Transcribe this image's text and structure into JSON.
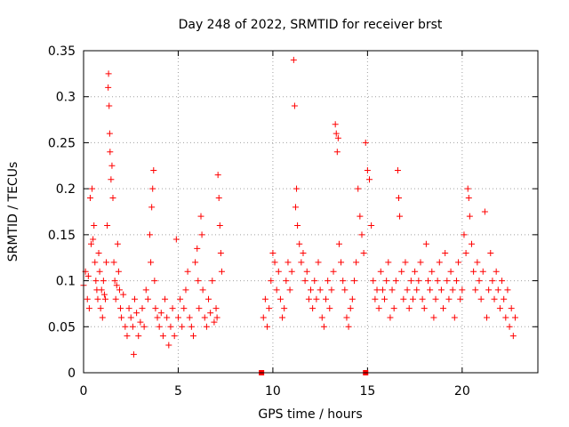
{
  "chart_data": {
    "type": "scatter",
    "title": "Day 248 of 2022, SRMTID for receiver brst",
    "xlabel": "GPS time / hours",
    "ylabel": "SRMTID / TECUs",
    "xlim": [
      0,
      24
    ],
    "ylim": [
      0,
      0.35
    ],
    "xticks": [
      0,
      5,
      10,
      15,
      20
    ],
    "xtick_labels": [
      "0",
      "5",
      "10",
      "15",
      "20"
    ],
    "yticks": [
      0,
      0.05,
      0.1,
      0.15,
      0.2,
      0.25,
      0.3,
      0.35
    ],
    "ytick_labels": [
      "0",
      "0.05",
      "0.1",
      "0.15",
      "0.2",
      "0.25",
      "0.3",
      "0.35"
    ],
    "grid": true,
    "legend": "none",
    "marker": "plus",
    "color": "#ff0000",
    "zero_markers": {
      "marker": "square",
      "x": [
        9.4,
        14.9
      ],
      "y": [
        0,
        0
      ]
    },
    "segments": [
      {
        "x_range": [
          0.0,
          7.3
        ],
        "points": [
          [
            0.0,
            0.095
          ],
          [
            0.1,
            0.11
          ],
          [
            0.2,
            0.08
          ],
          [
            0.25,
            0.105
          ],
          [
            0.3,
            0.07
          ],
          [
            0.35,
            0.19
          ],
          [
            0.4,
            0.14
          ],
          [
            0.45,
            0.2
          ],
          [
            0.5,
            0.145
          ],
          [
            0.55,
            0.16
          ],
          [
            0.6,
            0.12
          ],
          [
            0.65,
            0.1
          ],
          [
            0.7,
            0.09
          ],
          [
            0.75,
            0.08
          ],
          [
            0.8,
            0.13
          ],
          [
            0.85,
            0.11
          ],
          [
            0.9,
            0.07
          ],
          [
            0.95,
            0.09
          ],
          [
            1.0,
            0.06
          ],
          [
            1.05,
            0.1
          ],
          [
            1.1,
            0.085
          ],
          [
            1.15,
            0.08
          ],
          [
            1.2,
            0.12
          ],
          [
            1.25,
            0.16
          ],
          [
            1.3,
            0.31
          ],
          [
            1.32,
            0.325
          ],
          [
            1.35,
            0.29
          ],
          [
            1.38,
            0.26
          ],
          [
            1.4,
            0.24
          ],
          [
            1.45,
            0.21
          ],
          [
            1.5,
            0.225
          ],
          [
            1.55,
            0.19
          ],
          [
            1.6,
            0.12
          ],
          [
            1.65,
            0.1
          ],
          [
            1.7,
            0.08
          ],
          [
            1.75,
            0.095
          ],
          [
            1.8,
            0.14
          ],
          [
            1.85,
            0.11
          ],
          [
            1.9,
            0.09
          ],
          [
            1.95,
            0.07
          ],
          [
            2.0,
            0.06
          ],
          [
            2.1,
            0.085
          ],
          [
            2.2,
            0.05
          ],
          [
            2.3,
            0.04
          ],
          [
            2.4,
            0.07
          ],
          [
            2.5,
            0.06
          ],
          [
            2.6,
            0.05
          ],
          [
            2.65,
            0.02
          ],
          [
            2.7,
            0.08
          ],
          [
            2.8,
            0.065
          ],
          [
            2.9,
            0.04
          ],
          [
            3.0,
            0.055
          ],
          [
            3.1,
            0.07
          ],
          [
            3.2,
            0.05
          ],
          [
            3.3,
            0.09
          ],
          [
            3.4,
            0.08
          ],
          [
            3.5,
            0.15
          ],
          [
            3.55,
            0.12
          ],
          [
            3.6,
            0.18
          ],
          [
            3.65,
            0.2
          ],
          [
            3.7,
            0.22
          ],
          [
            3.75,
            0.1
          ],
          [
            3.8,
            0.07
          ],
          [
            3.9,
            0.06
          ],
          [
            4.0,
            0.05
          ],
          [
            4.1,
            0.065
          ],
          [
            4.2,
            0.04
          ],
          [
            4.3,
            0.08
          ],
          [
            4.4,
            0.06
          ],
          [
            4.5,
            0.03
          ],
          [
            4.6,
            0.05
          ],
          [
            4.7,
            0.07
          ],
          [
            4.8,
            0.04
          ],
          [
            4.9,
            0.145
          ],
          [
            5.0,
            0.06
          ],
          [
            5.1,
            0.08
          ],
          [
            5.2,
            0.05
          ],
          [
            5.3,
            0.07
          ],
          [
            5.4,
            0.09
          ],
          [
            5.5,
            0.11
          ],
          [
            5.6,
            0.06
          ],
          [
            5.7,
            0.05
          ],
          [
            5.8,
            0.04
          ],
          [
            5.9,
            0.12
          ],
          [
            6.0,
            0.135
          ],
          [
            6.05,
            0.1
          ],
          [
            6.1,
            0.07
          ],
          [
            6.2,
            0.17
          ],
          [
            6.25,
            0.15
          ],
          [
            6.3,
            0.09
          ],
          [
            6.4,
            0.06
          ],
          [
            6.5,
            0.05
          ],
          [
            6.6,
            0.08
          ],
          [
            6.7,
            0.065
          ],
          [
            6.8,
            0.1
          ],
          [
            6.9,
            0.055
          ],
          [
            7.0,
            0.07
          ],
          [
            7.05,
            0.06
          ],
          [
            7.1,
            0.215
          ],
          [
            7.15,
            0.19
          ],
          [
            7.2,
            0.16
          ],
          [
            7.25,
            0.13
          ],
          [
            7.3,
            0.11
          ]
        ]
      },
      {
        "x_range": [
          9.5,
          22.8
        ],
        "points": [
          [
            9.5,
            0.06
          ],
          [
            9.6,
            0.08
          ],
          [
            9.7,
            0.05
          ],
          [
            9.8,
            0.07
          ],
          [
            9.9,
            0.1
          ],
          [
            10.0,
            0.13
          ],
          [
            10.1,
            0.12
          ],
          [
            10.2,
            0.09
          ],
          [
            10.3,
            0.11
          ],
          [
            10.4,
            0.08
          ],
          [
            10.5,
            0.06
          ],
          [
            10.6,
            0.07
          ],
          [
            10.7,
            0.1
          ],
          [
            10.8,
            0.12
          ],
          [
            10.9,
            0.09
          ],
          [
            11.0,
            0.11
          ],
          [
            11.1,
            0.34
          ],
          [
            11.15,
            0.29
          ],
          [
            11.2,
            0.18
          ],
          [
            11.25,
            0.2
          ],
          [
            11.3,
            0.16
          ],
          [
            11.4,
            0.14
          ],
          [
            11.5,
            0.12
          ],
          [
            11.6,
            0.13
          ],
          [
            11.7,
            0.1
          ],
          [
            11.8,
            0.11
          ],
          [
            11.9,
            0.08
          ],
          [
            12.0,
            0.09
          ],
          [
            12.1,
            0.07
          ],
          [
            12.2,
            0.1
          ],
          [
            12.3,
            0.08
          ],
          [
            12.4,
            0.12
          ],
          [
            12.5,
            0.09
          ],
          [
            12.6,
            0.06
          ],
          [
            12.7,
            0.05
          ],
          [
            12.8,
            0.08
          ],
          [
            12.9,
            0.1
          ],
          [
            13.0,
            0.07
          ],
          [
            13.1,
            0.09
          ],
          [
            13.2,
            0.11
          ],
          [
            13.3,
            0.27
          ],
          [
            13.35,
            0.26
          ],
          [
            13.4,
            0.24
          ],
          [
            13.45,
            0.255
          ],
          [
            13.5,
            0.14
          ],
          [
            13.6,
            0.12
          ],
          [
            13.7,
            0.1
          ],
          [
            13.8,
            0.09
          ],
          [
            13.9,
            0.06
          ],
          [
            14.0,
            0.05
          ],
          [
            14.1,
            0.07
          ],
          [
            14.2,
            0.08
          ],
          [
            14.3,
            0.1
          ],
          [
            14.4,
            0.12
          ],
          [
            14.5,
            0.2
          ],
          [
            14.6,
            0.17
          ],
          [
            14.7,
            0.15
          ],
          [
            14.8,
            0.13
          ],
          [
            14.9,
            0.25
          ],
          [
            15.0,
            0.22
          ],
          [
            15.1,
            0.21
          ],
          [
            15.2,
            0.16
          ],
          [
            15.3,
            0.1
          ],
          [
            15.4,
            0.08
          ],
          [
            15.5,
            0.09
          ],
          [
            15.6,
            0.07
          ],
          [
            15.7,
            0.11
          ],
          [
            15.8,
            0.09
          ],
          [
            15.9,
            0.08
          ],
          [
            16.0,
            0.1
          ],
          [
            16.1,
            0.12
          ],
          [
            16.2,
            0.06
          ],
          [
            16.3,
            0.09
          ],
          [
            16.4,
            0.07
          ],
          [
            16.5,
            0.1
          ],
          [
            16.6,
            0.22
          ],
          [
            16.65,
            0.19
          ],
          [
            16.7,
            0.17
          ],
          [
            16.8,
            0.11
          ],
          [
            16.9,
            0.08
          ],
          [
            17.0,
            0.12
          ],
          [
            17.1,
            0.09
          ],
          [
            17.2,
            0.07
          ],
          [
            17.3,
            0.1
          ],
          [
            17.4,
            0.08
          ],
          [
            17.5,
            0.11
          ],
          [
            17.6,
            0.09
          ],
          [
            17.7,
            0.1
          ],
          [
            17.8,
            0.12
          ],
          [
            17.9,
            0.08
          ],
          [
            18.0,
            0.07
          ],
          [
            18.1,
            0.14
          ],
          [
            18.2,
            0.1
          ],
          [
            18.3,
            0.09
          ],
          [
            18.4,
            0.11
          ],
          [
            18.5,
            0.06
          ],
          [
            18.6,
            0.08
          ],
          [
            18.7,
            0.1
          ],
          [
            18.8,
            0.12
          ],
          [
            18.9,
            0.09
          ],
          [
            19.0,
            0.07
          ],
          [
            19.1,
            0.13
          ],
          [
            19.2,
            0.1
          ],
          [
            19.3,
            0.08
          ],
          [
            19.4,
            0.11
          ],
          [
            19.5,
            0.09
          ],
          [
            19.6,
            0.06
          ],
          [
            19.7,
            0.1
          ],
          [
            19.8,
            0.12
          ],
          [
            19.9,
            0.08
          ],
          [
            20.0,
            0.09
          ],
          [
            20.1,
            0.15
          ],
          [
            20.2,
            0.13
          ],
          [
            20.3,
            0.2
          ],
          [
            20.35,
            0.19
          ],
          [
            20.4,
            0.17
          ],
          [
            20.5,
            0.14
          ],
          [
            20.6,
            0.11
          ],
          [
            20.7,
            0.09
          ],
          [
            20.8,
            0.12
          ],
          [
            20.9,
            0.1
          ],
          [
            21.0,
            0.08
          ],
          [
            21.1,
            0.11
          ],
          [
            21.2,
            0.175
          ],
          [
            21.3,
            0.06
          ],
          [
            21.4,
            0.09
          ],
          [
            21.5,
            0.13
          ],
          [
            21.6,
            0.1
          ],
          [
            21.7,
            0.08
          ],
          [
            21.8,
            0.11
          ],
          [
            21.9,
            0.09
          ],
          [
            22.0,
            0.07
          ],
          [
            22.1,
            0.1
          ],
          [
            22.2,
            0.08
          ],
          [
            22.3,
            0.06
          ],
          [
            22.4,
            0.09
          ],
          [
            22.5,
            0.05
          ],
          [
            22.6,
            0.07
          ],
          [
            22.7,
            0.04
          ],
          [
            22.8,
            0.06
          ]
        ]
      }
    ]
  }
}
